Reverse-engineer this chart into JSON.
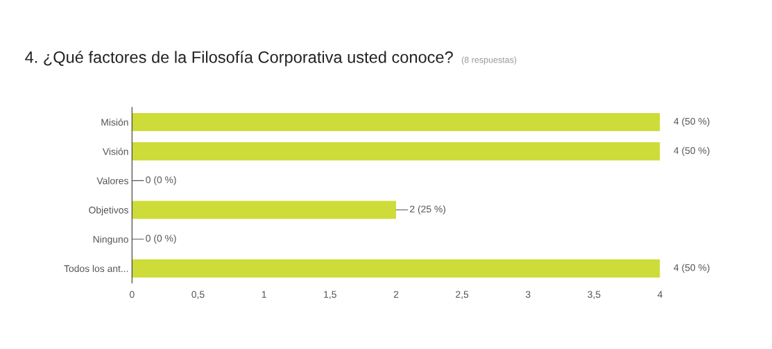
{
  "chart_data": {
    "type": "bar",
    "orientation": "horizontal",
    "title": "4. ¿Qué factores de la Filosofía Corporativa usted conoce?",
    "subtitle": "(8 respuestas)",
    "categories": [
      "Misión",
      "Visión",
      "Valores",
      "Objetivos",
      "Ninguno",
      "Todos los ant..."
    ],
    "values": [
      4,
      4,
      0,
      2,
      0,
      4
    ],
    "value_labels": [
      "4 (50 %)",
      "4 (50 %)",
      "0 (0 %)",
      "2 (25 %)",
      "0 (0 %)",
      "4 (50 %)"
    ],
    "color": "#cddc39",
    "xlim": [
      0,
      4
    ],
    "xticks": [
      0,
      {
        "value": 0.5,
        "label": "0,5"
      },
      1,
      {
        "value": 1.5,
        "label": "1,5"
      },
      2,
      {
        "value": 2.5,
        "label": "2,5"
      },
      3,
      {
        "value": 3.5,
        "label": "3,5"
      },
      4
    ],
    "grid": false,
    "legend": false
  }
}
